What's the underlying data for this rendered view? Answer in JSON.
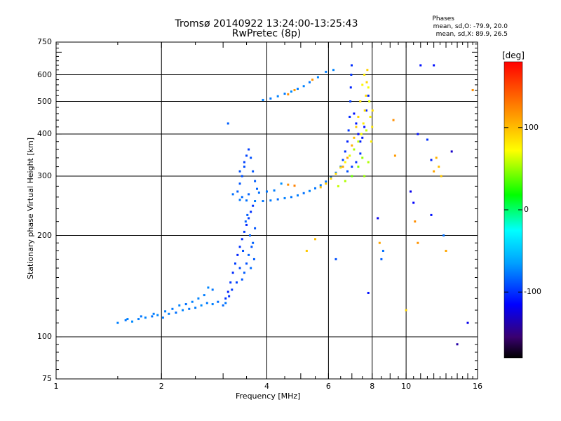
{
  "header": {
    "title_line1": "Tromsø 20140922 13:24:00-13:25:43",
    "title_line2": "RwPretec (8p)"
  },
  "phases": {
    "title": "Phases",
    "line_o": "mean, sd,O: -79.9, 20.0",
    "line_x": "mean, sd,X: 89.9, 26.5"
  },
  "chart_data": {
    "type": "scatter",
    "xlabel": "Frequency [MHz]",
    "ylabel": "Stationary phase Virtual Height [km]",
    "x_scale": "log",
    "y_scale": "log",
    "xlim": [
      1,
      16
    ],
    "ylim": [
      75,
      750
    ],
    "x_tick_labels": [
      "1",
      "2",
      "4",
      "6",
      "8",
      "10",
      "16"
    ],
    "x_ticks": [
      1,
      2,
      4,
      6,
      8,
      10,
      16
    ],
    "y_tick_labels": [
      "75",
      "100",
      "200",
      "300",
      "400",
      "500",
      "600",
      "750"
    ],
    "y_ticks": [
      75,
      100,
      200,
      300,
      400,
      500,
      600,
      750
    ],
    "x_gridlines": [
      2,
      4,
      6,
      8,
      10
    ],
    "y_gridlines": [
      100,
      200,
      300,
      400,
      500,
      600
    ],
    "grid": true,
    "colorbar": {
      "label": "[deg]",
      "range": [
        -180,
        180
      ],
      "ticks": [
        100,
        0,
        -100
      ],
      "tick_labels": [
        "100",
        "0",
        "-100"
      ],
      "colormap": [
        "#000000",
        "#3a0070",
        "#0000ff",
        "#00a0ff",
        "#00ffff",
        "#00ff00",
        "#ffff00",
        "#ff8000",
        "#ff0000"
      ]
    },
    "series": [
      {
        "points": [
          [
            1.5,
            110,
            -75
          ],
          [
            1.58,
            112,
            -78
          ],
          [
            1.65,
            111,
            -72
          ],
          [
            1.72,
            113,
            -76
          ],
          [
            1.8,
            114,
            -74
          ],
          [
            1.88,
            115,
            -79
          ],
          [
            1.95,
            116,
            -73
          ],
          [
            2.02,
            114,
            -77
          ],
          [
            2.1,
            117,
            -75
          ],
          [
            2.2,
            118,
            -80
          ],
          [
            2.3,
            120,
            -74
          ],
          [
            2.4,
            121,
            -78
          ],
          [
            2.5,
            122,
            -76
          ],
          [
            2.6,
            124,
            -72
          ],
          [
            2.7,
            126,
            -77
          ],
          [
            2.8,
            125,
            -75
          ],
          [
            2.9,
            127,
            -80
          ],
          [
            3.0,
            124,
            -82
          ],
          [
            3.05,
            126,
            -78
          ],
          [
            2.55,
            130,
            -74
          ],
          [
            2.65,
            133,
            -76
          ],
          [
            2.72,
            140,
            -73
          ],
          [
            2.8,
            138,
            -78
          ],
          [
            2.45,
            127,
            -75
          ],
          [
            2.35,
            125,
            -80
          ],
          [
            2.25,
            124,
            -74
          ],
          [
            2.15,
            121,
            -77
          ],
          [
            2.05,
            119,
            -75
          ],
          [
            1.9,
            117,
            -76
          ],
          [
            1.75,
            115,
            -78
          ],
          [
            1.6,
            113,
            -74
          ]
        ]
      },
      {
        "points": [
          [
            3.05,
            130,
            -100
          ],
          [
            3.1,
            136,
            -105
          ],
          [
            3.15,
            145,
            -98
          ],
          [
            3.2,
            155,
            -102
          ],
          [
            3.25,
            165,
            -96
          ],
          [
            3.3,
            175,
            -104
          ],
          [
            3.35,
            185,
            -99
          ],
          [
            3.4,
            195,
            -101
          ],
          [
            3.45,
            205,
            -97
          ],
          [
            3.5,
            215,
            -103
          ],
          [
            3.55,
            225,
            -95
          ],
          [
            3.6,
            235,
            -100
          ],
          [
            3.65,
            245,
            -98
          ],
          [
            3.58,
            200,
            -85
          ],
          [
            3.62,
            185,
            -88
          ],
          [
            3.55,
            175,
            -84
          ],
          [
            3.5,
            165,
            -90
          ],
          [
            3.45,
            155,
            -86
          ],
          [
            3.4,
            148,
            -88
          ],
          [
            3.65,
            190,
            -84
          ],
          [
            3.68,
            170,
            -86
          ],
          [
            3.6,
            160,
            -82
          ],
          [
            3.7,
            210,
            -88
          ],
          [
            3.52,
            230,
            -86
          ],
          [
            3.48,
            220,
            -84
          ],
          [
            3.42,
            180,
            -90
          ],
          [
            3.35,
            160,
            -92
          ],
          [
            3.28,
            145,
            -95
          ],
          [
            3.18,
            138,
            -97
          ],
          [
            3.12,
            132,
            -99
          ]
        ]
      },
      {
        "points": [
          [
            3.35,
            255,
            -78
          ],
          [
            3.5,
            254,
            -80
          ],
          [
            3.7,
            253,
            -76
          ],
          [
            3.9,
            253,
            -79
          ],
          [
            4.1,
            254,
            -77
          ],
          [
            4.3,
            256,
            -81
          ],
          [
            4.5,
            258,
            -75
          ],
          [
            4.7,
            260,
            -78
          ],
          [
            4.9,
            263,
            -76
          ],
          [
            5.1,
            267,
            -80
          ],
          [
            5.3,
            271,
            -74
          ],
          [
            5.5,
            276,
            -78
          ],
          [
            5.7,
            282,
            -76
          ],
          [
            5.9,
            289,
            -79
          ],
          [
            6.1,
            297,
            -77
          ],
          [
            6.3,
            307,
            -75
          ],
          [
            6.5,
            320,
            -80
          ],
          [
            6.6,
            335,
            -95
          ],
          [
            6.7,
            355,
            -100
          ],
          [
            6.8,
            380,
            -105
          ],
          [
            6.85,
            410,
            -98
          ],
          [
            6.9,
            450,
            -102
          ],
          [
            6.93,
            500,
            -96
          ],
          [
            6.95,
            550,
            -104
          ],
          [
            6.97,
            600,
            -99
          ],
          [
            6.99,
            640,
            -101
          ],
          [
            7.1,
            460,
            -110
          ],
          [
            7.2,
            430,
            -108
          ],
          [
            7.3,
            400,
            -112
          ],
          [
            7.4,
            380,
            -106
          ],
          [
            7.5,
            390,
            -108
          ],
          [
            7.6,
            420,
            -110
          ],
          [
            7.7,
            470,
            -106
          ],
          [
            7.8,
            520,
            -104
          ],
          [
            7.4,
            350,
            -100
          ],
          [
            7.2,
            330,
            -98
          ],
          [
            7.0,
            320,
            -95
          ],
          [
            6.8,
            310,
            -90
          ]
        ]
      },
      {
        "points": [
          [
            3.3,
            270,
            -85
          ],
          [
            3.35,
            285,
            -88
          ],
          [
            3.4,
            300,
            -90
          ],
          [
            3.45,
            320,
            -92
          ],
          [
            3.5,
            345,
            -94
          ],
          [
            3.55,
            360,
            -96
          ],
          [
            3.6,
            340,
            -90
          ],
          [
            3.65,
            310,
            -88
          ],
          [
            3.7,
            290,
            -86
          ],
          [
            3.75,
            275,
            -84
          ],
          [
            3.4,
            260,
            -82
          ],
          [
            3.55,
            265,
            -84
          ],
          [
            3.8,
            268,
            -80
          ],
          [
            4.0,
            270,
            -78
          ],
          [
            4.2,
            272,
            -76
          ],
          [
            4.4,
            285,
            -70
          ],
          [
            4.6,
            283,
            120
          ],
          [
            4.8,
            281,
            125
          ],
          [
            3.45,
            330,
            -95
          ],
          [
            3.35,
            310,
            -90
          ]
        ]
      },
      {
        "points": [
          [
            3.9,
            505,
            -75
          ],
          [
            4.1,
            510,
            -78
          ],
          [
            4.3,
            518,
            -74
          ],
          [
            4.5,
            527,
            -77
          ],
          [
            4.7,
            535,
            -72
          ],
          [
            4.9,
            545,
            -76
          ],
          [
            5.1,
            555,
            -74
          ],
          [
            5.3,
            570,
            -78
          ],
          [
            5.6,
            590,
            -73
          ],
          [
            5.9,
            612,
            -76
          ],
          [
            6.2,
            620,
            -74
          ],
          [
            4.6,
            525,
            120
          ],
          [
            4.8,
            540,
            115
          ],
          [
            5.4,
            580,
            118
          ]
        ]
      },
      {
        "points": [
          [
            5.7,
            278,
            100
          ],
          [
            5.9,
            285,
            95
          ],
          [
            6.1,
            295,
            90
          ],
          [
            6.3,
            305,
            88
          ],
          [
            6.5,
            318,
            85
          ],
          [
            6.7,
            330,
            75
          ],
          [
            6.9,
            345,
            65
          ],
          [
            7.1,
            360,
            55
          ],
          [
            7.3,
            380,
            60
          ],
          [
            7.45,
            400,
            70
          ],
          [
            7.55,
            430,
            80
          ],
          [
            7.62,
            470,
            85
          ],
          [
            7.68,
            520,
            88
          ],
          [
            7.72,
            570,
            90
          ],
          [
            7.75,
            620,
            92
          ],
          [
            7.6,
            600,
            80
          ],
          [
            7.5,
            560,
            75
          ],
          [
            7.4,
            500,
            85
          ],
          [
            7.3,
            450,
            90
          ],
          [
            7.2,
            420,
            95
          ],
          [
            7.1,
            390,
            100
          ],
          [
            7.0,
            370,
            105
          ],
          [
            6.8,
            340,
            110
          ],
          [
            6.6,
            320,
            108
          ],
          [
            7.8,
            550,
            70
          ],
          [
            7.85,
            500,
            65
          ],
          [
            7.9,
            450,
            75
          ],
          [
            7.7,
            410,
            60
          ],
          [
            7.5,
            340,
            50
          ],
          [
            7.3,
            320,
            45
          ],
          [
            7.0,
            300,
            40
          ],
          [
            6.7,
            290,
            55
          ],
          [
            6.4,
            280,
            60
          ],
          [
            7.6,
            300,
            50
          ],
          [
            7.8,
            330,
            55
          ],
          [
            7.95,
            380,
            78
          ],
          [
            8.0,
            420,
            82
          ],
          [
            8.02,
            470,
            86
          ]
        ]
      },
      {
        "points": [
          [
            3.1,
            430,
            -85
          ],
          [
            3.2,
            265,
            -80
          ],
          [
            5.2,
            180,
            95
          ],
          [
            5.5,
            195,
            100
          ],
          [
            6.3,
            170,
            -90
          ],
          [
            7.8,
            135,
            -110
          ],
          [
            8.3,
            225,
            -120
          ],
          [
            8.4,
            190,
            110
          ],
          [
            8.5,
            170,
            -85
          ],
          [
            8.6,
            180,
            -80
          ],
          [
            9.2,
            440,
            120
          ],
          [
            9.3,
            345,
            115
          ],
          [
            10.0,
            120,
            90
          ],
          [
            10.3,
            270,
            -120
          ],
          [
            10.5,
            250,
            -115
          ],
          [
            10.6,
            220,
            120
          ],
          [
            10.8,
            190,
            118
          ],
          [
            11.0,
            640,
            -110
          ],
          [
            11.5,
            385,
            -100
          ],
          [
            11.8,
            335,
            -105
          ],
          [
            12.0,
            310,
            110
          ],
          [
            12.2,
            340,
            105
          ],
          [
            12.4,
            320,
            100
          ],
          [
            12.6,
            300,
            95
          ],
          [
            12.8,
            200,
            -80
          ],
          [
            13.0,
            180,
            110
          ],
          [
            13.5,
            355,
            -130
          ],
          [
            14.0,
            95,
            -140
          ],
          [
            15.0,
            110,
            -120
          ],
          [
            15.5,
            540,
            120
          ],
          [
            12.0,
            640,
            -110
          ],
          [
            10.8,
            400,
            -110
          ],
          [
            11.8,
            230,
            -110
          ]
        ]
      }
    ]
  }
}
